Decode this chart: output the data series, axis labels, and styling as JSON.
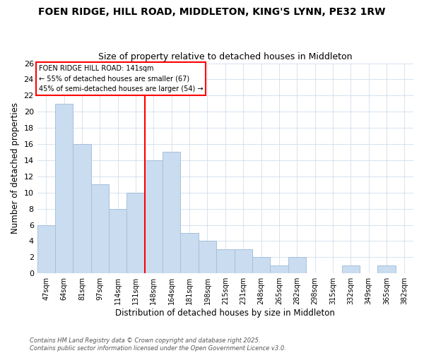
{
  "title_line1": "FOEN RIDGE, HILL ROAD, MIDDLETON, KING'S LYNN, PE32 1RW",
  "title_line2": "Size of property relative to detached houses in Middleton",
  "xlabel": "Distribution of detached houses by size in Middleton",
  "ylabel": "Number of detached properties",
  "categories": [
    "47sqm",
    "64sqm",
    "81sqm",
    "97sqm",
    "114sqm",
    "131sqm",
    "148sqm",
    "164sqm",
    "181sqm",
    "198sqm",
    "215sqm",
    "231sqm",
    "248sqm",
    "265sqm",
    "282sqm",
    "298sqm",
    "315sqm",
    "332sqm",
    "349sqm",
    "365sqm",
    "382sqm"
  ],
  "values": [
    6,
    21,
    16,
    11,
    8,
    10,
    14,
    15,
    5,
    4,
    3,
    3,
    2,
    1,
    2,
    0,
    0,
    1,
    0,
    1,
    0
  ],
  "bar_color": "#c9dcf0",
  "bar_edge_color": "#a8c0dc",
  "red_line_x": 5.5,
  "ylim": [
    0,
    26
  ],
  "yticks": [
    0,
    2,
    4,
    6,
    8,
    10,
    12,
    14,
    16,
    18,
    20,
    22,
    24,
    26
  ],
  "annotation_title": "FOEN RIDGE HILL ROAD: 141sqm",
  "annotation_line2": "← 55% of detached houses are smaller (67)",
  "annotation_line3": "45% of semi-detached houses are larger (54) →",
  "footnote1": "Contains HM Land Registry data © Crown copyright and database right 2025.",
  "footnote2": "Contains public sector information licensed under the Open Government Licence v3.0.",
  "background_color": "#ffffff",
  "grid_color": "#c8d8e8"
}
